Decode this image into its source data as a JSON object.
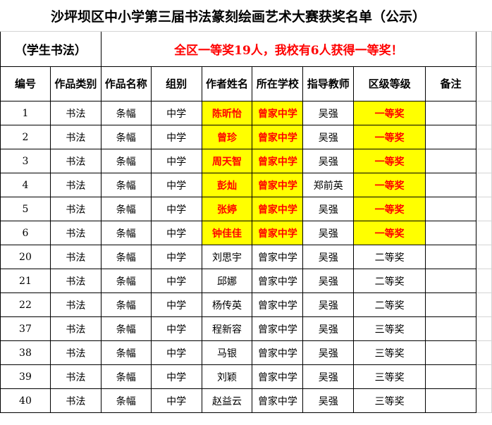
{
  "header": {
    "title": "沙坪坝区中小学第三届书法篆刻绘画艺术大赛获奖名单（公示）",
    "category": "（学生书法）",
    "notice": "全区一等奖19人，我校有6人获得一等奖！"
  },
  "table": {
    "headers": [
      "编号",
      "作品类别",
      "作品名称",
      "组别",
      "作者姓名",
      "所在学校",
      "指导教师",
      "区级等级",
      "备注"
    ],
    "rows": [
      {
        "cells": [
          "1",
          "书法",
          "条幅",
          "中学",
          "陈昕怡",
          "曾家中学",
          "吴强",
          "一等奖"
        ],
        "highlight": "#ffff00"
      },
      {
        "cells": [
          "2",
          "书法",
          "条幅",
          "中学",
          "曾珍",
          "曾家中学",
          "吴强",
          "一等奖"
        ],
        "highlight": "#ffff00"
      },
      {
        "cells": [
          "3",
          "书法",
          "条幅",
          "中学",
          "周天智",
          "曾家中学",
          "吴强",
          "一等奖"
        ],
        "highlight": "#ffff00"
      },
      {
        "cells": [
          "4",
          "书法",
          "条幅",
          "中学",
          "彭灿",
          "曾家中学",
          "郑前英",
          "一等奖"
        ],
        "highlight": "#ffff00"
      },
      {
        "cells": [
          "5",
          "书法",
          "条幅",
          "中学",
          "张婷",
          "曾家中学",
          "吴强",
          "一等奖"
        ],
        "highlight": "#ffff00"
      },
      {
        "cells": [
          "6",
          "书法",
          "条幅",
          "中学",
          "钟佳佳",
          "曾家中学",
          "吴强",
          "一等奖"
        ],
        "highlight": "#ffff00"
      },
      {
        "cells": [
          "20",
          "书法",
          "条幅",
          "中学",
          "刘思宇",
          "曾家中学",
          "吴强",
          "二等奖"
        ]
      },
      {
        "cells": [
          "21",
          "书法",
          "条幅",
          "中学",
          "邱娜",
          "曾家中学",
          "吴强",
          "二等奖"
        ]
      },
      {
        "cells": [
          "22",
          "书法",
          "条幅",
          "中学",
          "杨传英",
          "曾家中学",
          "吴强",
          "二等奖"
        ]
      },
      {
        "cells": [
          "37",
          "书法",
          "条幅",
          "中学",
          "程新容",
          "曾家中学",
          "吴强",
          "三等奖"
        ]
      },
      {
        "cells": [
          "38",
          "书法",
          "条幅",
          "中学",
          "马银",
          "曾家中学",
          "吴强",
          "三等奖"
        ]
      },
      {
        "cells": [
          "39",
          "书法",
          "条幅",
          "中学",
          "刘颖",
          "曾家中学",
          "吴强",
          "三等奖"
        ]
      },
      {
        "cells": [
          "40",
          "书法",
          "条幅",
          "中学",
          "赵益云",
          "曾家中学",
          "吴强",
          "三等奖"
        ]
      }
    ]
  }
}
